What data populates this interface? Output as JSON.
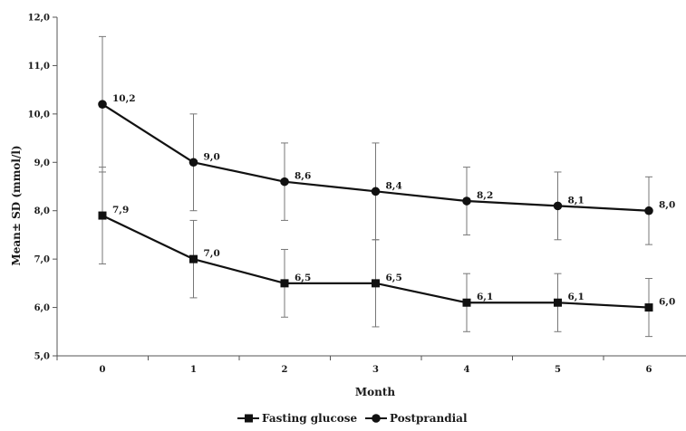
{
  "chart_data": {
    "type": "line",
    "title": "",
    "xlabel": "Month",
    "ylabel": "Mean± SD (mmol/l)",
    "x": [
      0,
      1,
      2,
      3,
      4,
      5,
      6
    ],
    "x_tick_labels": [
      "0",
      "1",
      "2",
      "3",
      "4",
      "5",
      "6"
    ],
    "ylim": [
      5.0,
      12.0
    ],
    "y_ticks": [
      5.0,
      6.0,
      7.0,
      8.0,
      9.0,
      10.0,
      11.0,
      12.0
    ],
    "y_tick_labels": [
      "5,0",
      "6,0",
      "7,0",
      "8,0",
      "9,0",
      "10,0",
      "11,0",
      "12,0"
    ],
    "grid": false,
    "legend_position": "bottom",
    "series": [
      {
        "name": "Fasting glucose",
        "marker": "square",
        "color": "#111111",
        "values": [
          7.9,
          7.0,
          6.5,
          6.5,
          6.1,
          6.1,
          6.0
        ],
        "labels": [
          "7,9",
          "7,0",
          "6,5",
          "6,5",
          "6,1",
          "6,1",
          "6,0"
        ],
        "sd": [
          1.0,
          0.8,
          0.7,
          0.9,
          0.6,
          0.6,
          0.6
        ]
      },
      {
        "name": "Postprandial",
        "marker": "circle",
        "color": "#111111",
        "values": [
          10.2,
          9.0,
          8.6,
          8.4,
          8.2,
          8.1,
          8.0
        ],
        "labels": [
          "10,2",
          "9,0",
          "8,6",
          "8,4",
          "8,2",
          "8,1",
          "8,0"
        ],
        "sd": [
          1.4,
          1.0,
          0.8,
          1.0,
          0.7,
          0.7,
          0.7
        ]
      }
    ]
  }
}
